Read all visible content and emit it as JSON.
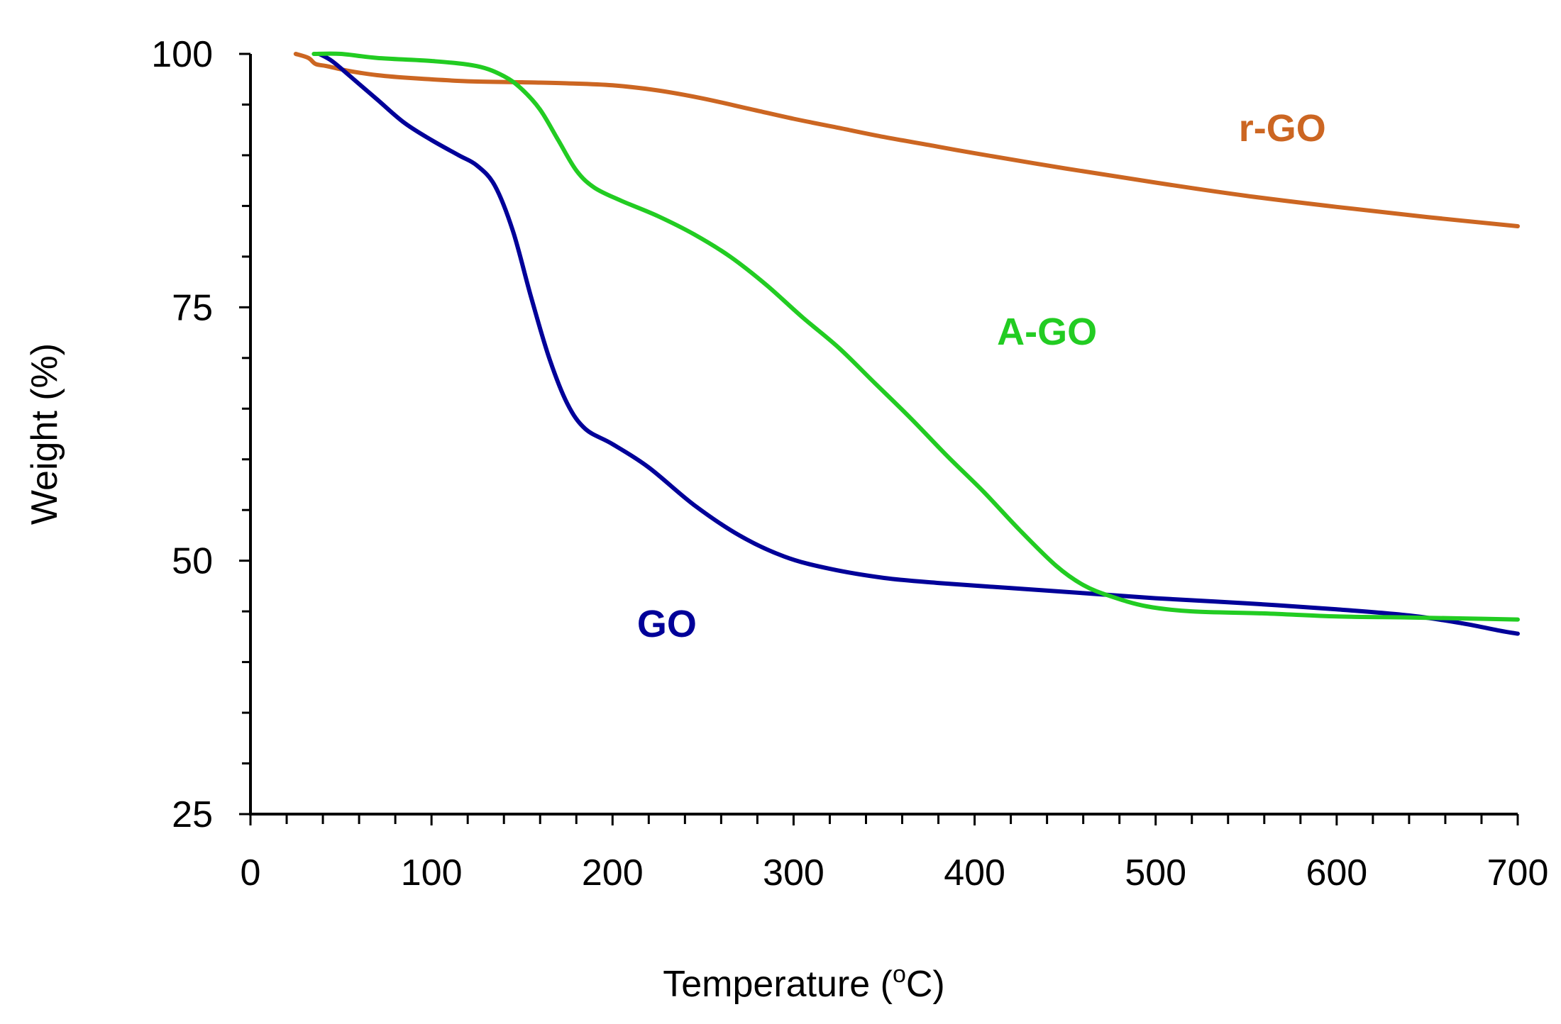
{
  "chart_data": {
    "type": "line",
    "title": "",
    "xlabel": "Temperature",
    "xlabel_unit_prefix": " (",
    "xlabel_unit_sup": "o",
    "xlabel_unit_suffix": "C)",
    "ylabel": "Weight (%)",
    "xlim": [
      0,
      700
    ],
    "ylim": [
      25,
      100
    ],
    "x_ticks": [
      0,
      100,
      200,
      300,
      400,
      500,
      600,
      700
    ],
    "x_tick_labels": [
      "0",
      "100",
      "200",
      "300",
      "400",
      "500",
      "600",
      "700"
    ],
    "x_minor_step": 20,
    "y_ticks": [
      25,
      50,
      75,
      100
    ],
    "y_tick_labels": [
      "25",
      "50",
      "75",
      "100"
    ],
    "y_minor_step": 5,
    "grid": false,
    "legend": "inline labels",
    "series": [
      {
        "name": "GO",
        "label": "GO",
        "color": "#000099",
        "label_at": [
          230,
          42.5
        ],
        "points": [
          [
            38,
            100
          ],
          [
            45,
            99.3
          ],
          [
            55,
            97.8
          ],
          [
            70,
            95.5
          ],
          [
            85,
            93.2
          ],
          [
            100,
            91.5
          ],
          [
            115,
            90
          ],
          [
            125,
            89
          ],
          [
            135,
            87
          ],
          [
            145,
            82.5
          ],
          [
            155,
            76
          ],
          [
            165,
            70
          ],
          [
            175,
            65.5
          ],
          [
            185,
            63
          ],
          [
            200,
            61.5
          ],
          [
            220,
            59.2
          ],
          [
            245,
            55.5
          ],
          [
            270,
            52.5
          ],
          [
            295,
            50.4
          ],
          [
            320,
            49.2
          ],
          [
            350,
            48.3
          ],
          [
            380,
            47.8
          ],
          [
            420,
            47.3
          ],
          [
            460,
            46.8
          ],
          [
            500,
            46.3
          ],
          [
            550,
            45.8
          ],
          [
            600,
            45.2
          ],
          [
            640,
            44.6
          ],
          [
            670,
            43.8
          ],
          [
            690,
            43.1
          ],
          [
            700,
            42.8
          ]
        ]
      },
      {
        "name": "A-GO",
        "label": "A-GO",
        "color": "#22CC22",
        "label_at": [
          440,
          71.3
        ],
        "points": [
          [
            35,
            100
          ],
          [
            50,
            100
          ],
          [
            70,
            99.6
          ],
          [
            100,
            99.3
          ],
          [
            125,
            98.8
          ],
          [
            140,
            97.8
          ],
          [
            150,
            96.5
          ],
          [
            160,
            94.5
          ],
          [
            170,
            91.5
          ],
          [
            180,
            88.5
          ],
          [
            190,
            86.8
          ],
          [
            205,
            85.5
          ],
          [
            225,
            84
          ],
          [
            245,
            82.2
          ],
          [
            265,
            80
          ],
          [
            285,
            77.2
          ],
          [
            305,
            74
          ],
          [
            325,
            71
          ],
          [
            345,
            67.5
          ],
          [
            365,
            64
          ],
          [
            385,
            60.3
          ],
          [
            405,
            56.8
          ],
          [
            425,
            53
          ],
          [
            445,
            49.5
          ],
          [
            460,
            47.6
          ],
          [
            475,
            46.5
          ],
          [
            495,
            45.5
          ],
          [
            520,
            45
          ],
          [
            560,
            44.8
          ],
          [
            600,
            44.5
          ],
          [
            640,
            44.4
          ],
          [
            670,
            44.3
          ],
          [
            700,
            44.2
          ]
        ]
      },
      {
        "name": "r-GO",
        "label": "r-GO",
        "color": "#CC6622",
        "label_at": [
          570,
          91.4
        ],
        "points": [
          [
            25,
            100
          ],
          [
            32,
            99.6
          ],
          [
            36,
            99
          ],
          [
            42,
            98.8
          ],
          [
            55,
            98.3
          ],
          [
            70,
            97.9
          ],
          [
            90,
            97.6
          ],
          [
            120,
            97.3
          ],
          [
            150,
            97.2
          ],
          [
            175,
            97.1
          ],
          [
            200,
            96.9
          ],
          [
            225,
            96.4
          ],
          [
            250,
            95.6
          ],
          [
            275,
            94.6
          ],
          [
            300,
            93.6
          ],
          [
            325,
            92.7
          ],
          [
            350,
            91.8
          ],
          [
            375,
            91
          ],
          [
            400,
            90.2
          ],
          [
            450,
            88.7
          ],
          [
            500,
            87.3
          ],
          [
            550,
            86
          ],
          [
            600,
            84.9
          ],
          [
            650,
            83.9
          ],
          [
            700,
            83
          ]
        ]
      }
    ]
  }
}
